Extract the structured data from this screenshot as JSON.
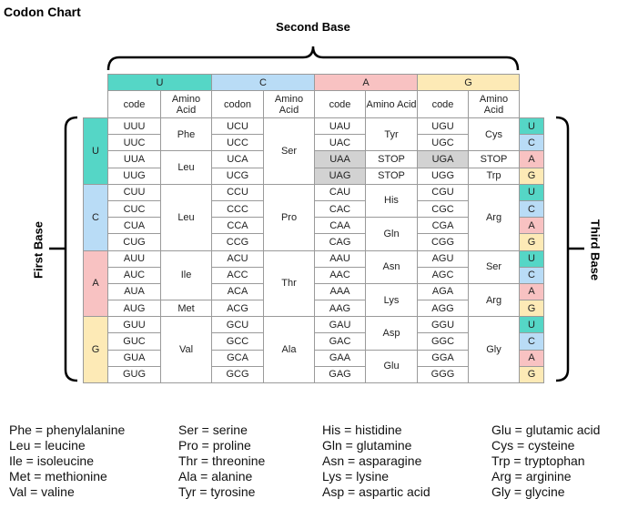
{
  "title": "Codon Chart",
  "second_base_label": "Second Base",
  "first_base_label": "First Base",
  "third_base_label": "Third Base",
  "table": {
    "base_colors": {
      "U": "#55d6c6",
      "C": "#b9dcf6",
      "A": "#f8c2c2",
      "G": "#fdeab6"
    },
    "columns": [
      {
        "base": "U",
        "code_header": "code",
        "amino_header": "Amino Acid"
      },
      {
        "base": "C",
        "code_header": "codon",
        "amino_header": "Amino Acid"
      },
      {
        "base": "A",
        "code_header": "code",
        "amino_header": "Amino Acid"
      },
      {
        "base": "G",
        "code_header": "code",
        "amino_header": "Amino Acid"
      }
    ],
    "blocks": [
      {
        "first": "U",
        "third": [
          "U",
          "C",
          "A",
          "G"
        ],
        "columns": [
          {
            "groups": [
              {
                "amino": "Phe",
                "codons": [
                  "UUU",
                  "UUC"
                ]
              },
              {
                "amino": "Leu",
                "codons": [
                  "UUA",
                  "UUG"
                ]
              }
            ]
          },
          {
            "groups": [
              {
                "amino": "Ser",
                "codons": [
                  "UCU",
                  "UCC",
                  "UCA",
                  "UCG"
                ]
              }
            ]
          },
          {
            "groups": [
              {
                "amino": "Tyr",
                "codons": [
                  "UAU",
                  "UAC"
                ]
              },
              {
                "amino": "STOP",
                "codons": [
                  "UAA"
                ],
                "shaded": true
              },
              {
                "amino": "STOP",
                "codons": [
                  "UAG"
                ],
                "shaded": true
              }
            ]
          },
          {
            "groups": [
              {
                "amino": "Cys",
                "codons": [
                  "UGU",
                  "UGC"
                ]
              },
              {
                "amino": "STOP",
                "codons": [
                  "UGA"
                ],
                "shaded": true
              },
              {
                "amino": "Trp",
                "codons": [
                  "UGG"
                ]
              }
            ]
          }
        ]
      },
      {
        "first": "C",
        "third": [
          "U",
          "C",
          "A",
          "G"
        ],
        "columns": [
          {
            "groups": [
              {
                "amino": "Leu",
                "codons": [
                  "CUU",
                  "CUC",
                  "CUA",
                  "CUG"
                ]
              }
            ]
          },
          {
            "groups": [
              {
                "amino": "Pro",
                "codons": [
                  "CCU",
                  "CCC",
                  "CCA",
                  "CCG"
                ]
              }
            ]
          },
          {
            "groups": [
              {
                "amino": "His",
                "codons": [
                  "CAU",
                  "CAC"
                ]
              },
              {
                "amino": "Gln",
                "codons": [
                  "CAA",
                  "CAG"
                ]
              }
            ]
          },
          {
            "groups": [
              {
                "amino": "Arg",
                "codons": [
                  "CGU",
                  "CGC",
                  "CGA",
                  "CGG"
                ]
              }
            ]
          }
        ]
      },
      {
        "first": "A",
        "third": [
          "U",
          "C",
          "A",
          "G"
        ],
        "columns": [
          {
            "groups": [
              {
                "amino": "Ile",
                "codons": [
                  "AUU",
                  "AUC",
                  "AUA"
                ]
              },
              {
                "amino": "Met",
                "codons": [
                  "AUG"
                ]
              }
            ]
          },
          {
            "groups": [
              {
                "amino": "Thr",
                "codons": [
                  "ACU",
                  "ACC",
                  "ACA",
                  "ACG"
                ]
              }
            ]
          },
          {
            "groups": [
              {
                "amino": "Asn",
                "codons": [
                  "AAU",
                  "AAC"
                ]
              },
              {
                "amino": "Lys",
                "codons": [
                  "AAA",
                  "AAG"
                ]
              }
            ]
          },
          {
            "groups": [
              {
                "amino": "Ser",
                "codons": [
                  "AGU",
                  "AGC"
                ]
              },
              {
                "amino": "Arg",
                "codons": [
                  "AGA",
                  "AGG"
                ]
              }
            ]
          }
        ]
      },
      {
        "first": "G",
        "third": [
          "U",
          "C",
          "A",
          "G"
        ],
        "columns": [
          {
            "groups": [
              {
                "amino": "Val",
                "codons": [
                  "GUU",
                  "GUC",
                  "GUA",
                  "GUG"
                ]
              }
            ]
          },
          {
            "groups": [
              {
                "amino": "Ala",
                "codons": [
                  "GCU",
                  "GCC",
                  "GCA",
                  "GCG"
                ]
              }
            ]
          },
          {
            "groups": [
              {
                "amino": "Asp",
                "codons": [
                  "GAU",
                  "GAC"
                ]
              },
              {
                "amino": "Glu",
                "codons": [
                  "GAA",
                  "GAG"
                ]
              }
            ]
          },
          {
            "groups": [
              {
                "amino": "Gly",
                "codons": [
                  "GGU",
                  "GGC",
                  "GGA",
                  "GGG"
                ]
              }
            ]
          }
        ]
      }
    ]
  },
  "legend": [
    [
      "Phe = phenylalanine",
      "Leu = leucine",
      "Ile = isoleucine",
      "Met = methionine",
      "Val = valine"
    ],
    [
      "Ser = serine",
      "Pro = proline",
      "Thr = threonine",
      "Ala = alanine",
      "Tyr = tyrosine"
    ],
    [
      "His = histidine",
      "Gln = glutamine",
      "Asn = asparagine",
      "Lys = lysine",
      "Asp = aspartic acid"
    ],
    [
      "Glu = glutamic acid",
      "Cys = cysteine",
      "Trp = tryptophan",
      "Arg = arginine",
      "Gly = glycine"
    ]
  ]
}
